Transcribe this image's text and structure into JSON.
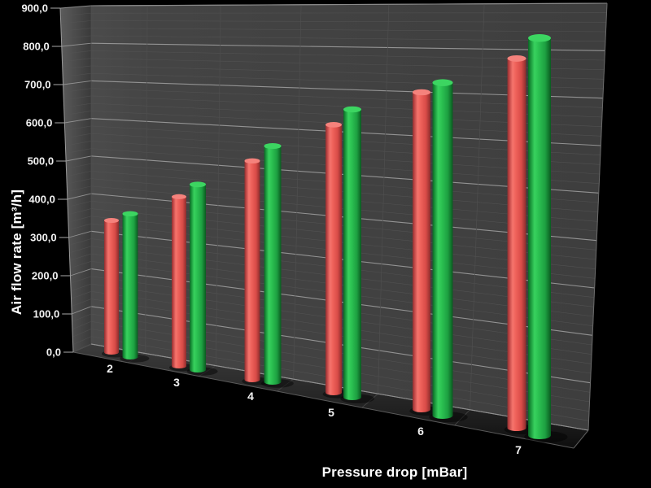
{
  "window": {
    "background": "#000000"
  },
  "chart_data": {
    "type": "bar",
    "style": "3d-cylinder",
    "title": "",
    "xlabel": "Pressure drop [mBar]",
    "ylabel": "Air flow rate [m³/h]",
    "categories": [
      "2",
      "3",
      "4",
      "5",
      "6",
      "7"
    ],
    "series": [
      {
        "name": "red",
        "color": "#ee5a54",
        "values": [
          350,
          420,
          510,
          600,
          685,
          770
        ]
      },
      {
        "name": "green",
        "color": "#22b24c",
        "values": [
          380,
          460,
          550,
          645,
          720,
          830
        ]
      }
    ],
    "ylim": [
      0,
      900
    ],
    "ytick_step": 100,
    "ytick_labels": [
      "0,0",
      "100,0",
      "200,0",
      "300,0",
      "400,0",
      "500,0",
      "600,0",
      "700,0",
      "800,0",
      "900,0"
    ],
    "minor_grid_step": 20,
    "grid": true,
    "legend": false,
    "colors": {
      "background": "#000000",
      "wall": "#424242",
      "major_grid": "#9c9c9c",
      "minor_grid": "#555555",
      "text": "#f2f2f2"
    }
  }
}
